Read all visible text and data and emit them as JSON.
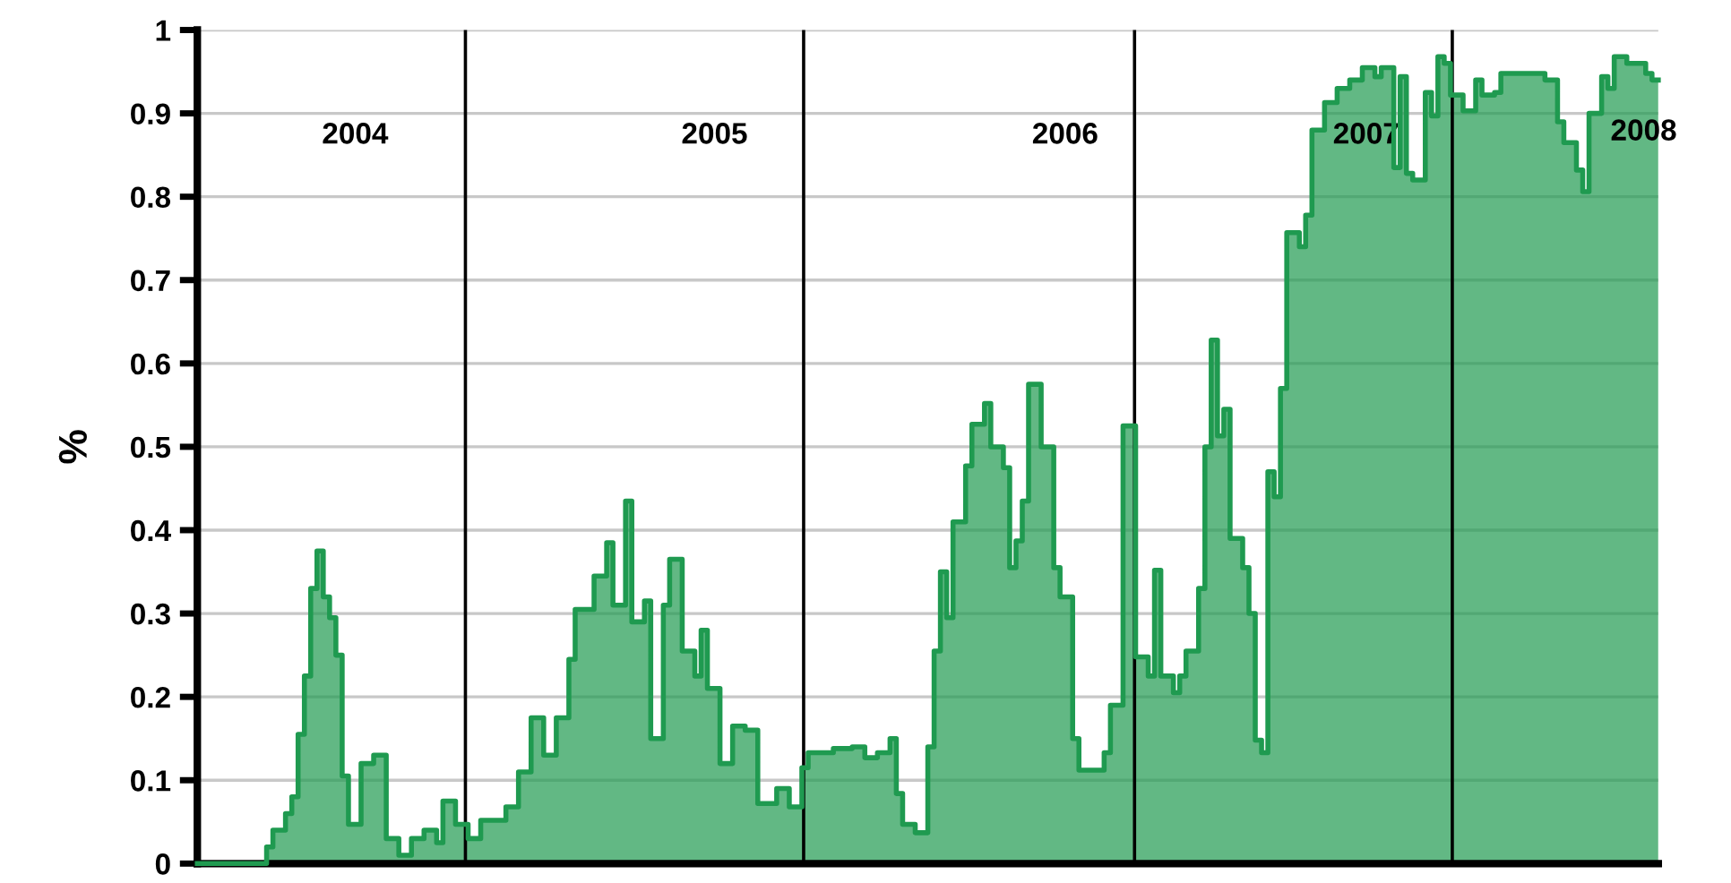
{
  "chart_data": {
    "type": "step",
    "ylabel": "%",
    "categories": [
      null,
      null,
      null,
      null,
      null,
      null,
      null,
      null,
      null,
      null,
      null,
      null,
      null,
      null,
      null,
      null,
      null,
      null,
      null,
      null,
      null,
      null,
      null,
      null,
      null,
      null,
      null,
      null,
      null,
      null,
      null,
      null,
      null,
      null,
      null,
      null,
      null,
      null,
      null,
      null,
      null,
      null,
      null,
      null,
      null,
      null,
      null,
      null,
      null,
      null,
      null,
      null,
      null,
      null,
      null,
      null,
      null,
      null,
      null,
      null,
      null,
      null,
      null,
      null,
      null,
      null,
      null,
      null,
      null,
      null,
      null,
      null,
      null,
      null,
      null,
      null,
      null,
      null,
      null,
      null,
      null,
      null,
      null,
      null,
      null,
      null,
      null,
      null,
      null,
      null,
      null,
      null,
      null,
      null,
      null,
      null,
      null,
      null,
      null,
      null,
      null,
      null,
      null,
      null,
      null,
      null,
      null,
      null,
      null,
      null,
      null,
      null,
      null,
      null,
      null,
      null,
      null,
      null,
      null,
      null,
      null,
      null,
      null,
      null,
      null,
      null,
      null,
      null,
      null,
      null,
      null,
      null,
      null,
      null,
      null,
      null,
      null,
      null,
      null,
      null,
      null,
      null,
      null,
      null,
      null,
      null,
      null,
      null,
      null,
      null,
      null,
      null,
      null,
      null,
      null,
      null,
      null,
      null,
      null,
      null,
      null,
      null,
      null,
      null,
      null,
      null,
      null,
      null,
      null,
      null,
      null,
      null,
      null,
      null,
      null,
      null,
      null,
      null,
      null,
      null,
      null,
      null,
      null,
      null,
      null,
      null,
      null,
      null,
      null,
      null,
      null,
      null,
      null,
      null,
      null,
      null,
      null,
      null,
      null,
      null,
      null,
      null,
      null,
      null,
      null,
      null,
      null,
      null,
      null,
      null,
      null,
      null,
      null,
      null,
      null,
      null,
      null,
      null,
      null,
      null,
      null,
      null,
      null,
      null,
      null,
      null,
      null,
      null,
      null,
      null,
      null,
      null
    ],
    "ylim": [
      0,
      1
    ],
    "yticks": [
      0,
      0.1,
      0.2,
      0.3,
      0.4,
      0.5,
      0.6,
      0.7,
      0.8,
      0.9,
      1
    ],
    "grid": "y",
    "series": [
      {
        "color": "#1f9a50",
        "values": [
          0,
          0,
          0,
          0,
          0,
          0,
          0,
          0,
          0,
          0,
          0,
          0.02,
          0.04,
          0.04,
          0.06,
          0.08,
          0.155,
          0.225,
          0.33,
          0.375,
          0.32,
          0.295,
          0.25,
          0.105,
          0.047,
          0.047,
          0.12,
          0.12,
          0.13,
          0.13,
          0.03,
          0.03,
          0.01,
          0.01,
          0.03,
          0.03,
          0.04,
          0.04,
          0.025,
          0.075,
          0.075,
          0.047,
          0.047,
          0.03,
          0.03,
          0.052,
          0.052,
          0.052,
          0.052,
          0.068,
          0.068,
          0.11,
          0.11,
          0.175,
          0.175,
          0.13,
          0.13,
          0.175,
          0.175,
          0.245,
          0.305,
          0.305,
          0.305,
          0.345,
          0.345,
          0.385,
          0.31,
          0.31,
          0.435,
          0.29,
          0.29,
          0.315,
          0.15,
          0.15,
          0.31,
          0.365,
          0.365,
          0.255,
          0.255,
          0.225,
          0.28,
          0.21,
          0.21,
          0.12,
          0.12,
          0.165,
          0.165,
          0.16,
          0.16,
          0.072,
          0.072,
          0.072,
          0.09,
          0.09,
          0.068,
          0.068,
          0.115,
          0.133,
          0.133,
          0.133,
          0.133,
          0.138,
          0.138,
          0.138,
          0.14,
          0.14,
          0.127,
          0.127,
          0.133,
          0.133,
          0.15,
          0.084,
          0.047,
          0.047,
          0.037,
          0.037,
          0.14,
          0.255,
          0.35,
          0.295,
          0.41,
          0.41,
          0.477,
          0.527,
          0.527,
          0.552,
          0.5,
          0.5,
          0.475,
          0.355,
          0.387,
          0.435,
          0.575,
          0.575,
          0.5,
          0.5,
          0.355,
          0.32,
          0.32,
          0.15,
          0.112,
          0.112,
          0.112,
          0.112,
          0.133,
          0.19,
          0.19,
          0.525,
          0.525,
          0.248,
          0.248,
          0.225,
          0.352,
          0.225,
          0.225,
          0.205,
          0.225,
          0.255,
          0.255,
          0.33,
          0.5,
          0.628,
          0.513,
          0.545,
          0.39,
          0.39,
          0.355,
          0.3,
          0.148,
          0.133,
          0.47,
          0.44,
          0.57,
          0.757,
          0.757,
          0.74,
          0.778,
          0.88,
          0.88,
          0.913,
          0.913,
          0.93,
          0.93,
          0.94,
          0.94,
          0.955,
          0.955,
          0.944,
          0.955,
          0.955,
          0.835,
          0.944,
          0.828,
          0.82,
          0.82,
          0.925,
          0.897,
          0.968,
          0.96,
          0.922,
          0.922,
          0.903,
          0.903,
          0.94,
          0.922,
          0.922,
          0.925,
          0.948,
          0.948,
          0.948,
          0.948,
          0.948,
          0.948,
          0.948,
          0.94,
          0.94,
          0.89,
          0.865,
          0.865,
          0.832,
          0.806,
          0.9,
          0.9,
          0.944,
          0.93,
          0.968,
          0.968,
          0.96,
          0.96,
          0.96,
          0.948,
          0.94
        ]
      }
    ],
    "annotations": [
      "2004",
      "2005",
      "2006",
      "2007",
      "2008"
    ]
  }
}
